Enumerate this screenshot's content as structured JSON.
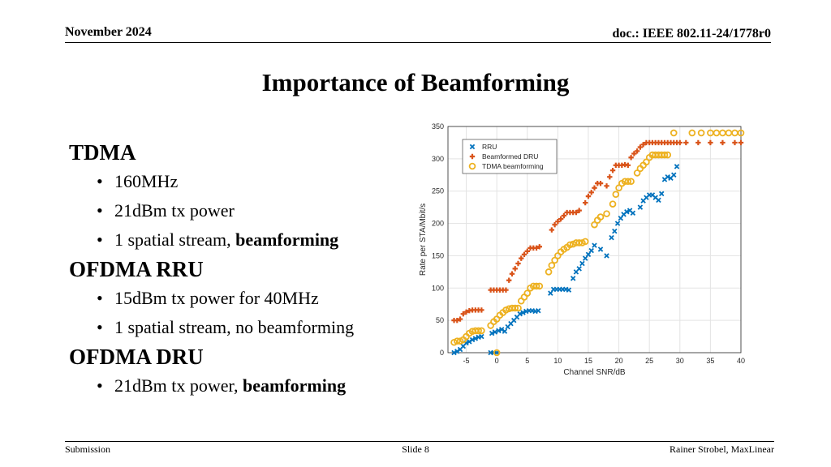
{
  "header": {
    "date": "November 2024",
    "doc": "doc.: IEEE 802.11-24/1778r0"
  },
  "title": "Importance of Beamforming",
  "bullets": [
    {
      "heading": "TDMA",
      "items": [
        {
          "text": "160MHz"
        },
        {
          "text": "21dBm tx power"
        },
        {
          "text": "1 spatial stream, ",
          "bold": "beamforming"
        }
      ]
    },
    {
      "heading": "OFDMA RRU",
      "items": [
        {
          "text": "15dBm tx power for 40MHz"
        },
        {
          "text": "1 spatial stream, no beamforming"
        }
      ]
    },
    {
      "heading": "OFDMA DRU",
      "items": [
        {
          "text": "21dBm tx power, ",
          "bold": "beamforming"
        }
      ]
    }
  ],
  "footer": {
    "left": "Submission",
    "center": "Slide 8",
    "right": "Rainer Strobel, MaxLinear"
  },
  "chart_data": {
    "type": "scatter",
    "xlabel": "Channel SNR/dB",
    "ylabel": "Rate per STA/Mbit/s",
    "xlim": [
      -8,
      40
    ],
    "ylim": [
      0,
      350
    ],
    "xticks": [
      -5,
      0,
      5,
      10,
      15,
      20,
      25,
      30,
      35,
      40
    ],
    "yticks": [
      0,
      50,
      100,
      150,
      200,
      250,
      300,
      350
    ],
    "grid": true,
    "legend_position": "top-left",
    "series": [
      {
        "name": "RRU",
        "color": "#0072BD",
        "marker": "x",
        "points": [
          [
            -7,
            0
          ],
          [
            -6.5,
            2
          ],
          [
            -6,
            5
          ],
          [
            -5.5,
            10
          ],
          [
            -5,
            15
          ],
          [
            -4.5,
            17
          ],
          [
            -4,
            20
          ],
          [
            -3.5,
            22
          ],
          [
            -3,
            24
          ],
          [
            -2.5,
            25
          ],
          [
            -1,
            0
          ],
          [
            -0.5,
            0
          ],
          [
            0,
            0
          ],
          [
            -0.8,
            30
          ],
          [
            -0.3,
            32
          ],
          [
            0.3,
            34
          ],
          [
            0.8,
            36
          ],
          [
            1.3,
            33
          ],
          [
            1.8,
            40
          ],
          [
            2.3,
            45
          ],
          [
            2.8,
            50
          ],
          [
            3.3,
            55
          ],
          [
            3.8,
            60
          ],
          [
            4.3,
            62
          ],
          [
            4.8,
            64
          ],
          [
            5.3,
            65
          ],
          [
            5.8,
            65
          ],
          [
            6.3,
            64
          ],
          [
            6.8,
            65
          ],
          [
            8.8,
            92
          ],
          [
            9.3,
            98
          ],
          [
            9.8,
            98
          ],
          [
            10.3,
            98
          ],
          [
            10.8,
            98
          ],
          [
            11.3,
            98
          ],
          [
            11.8,
            97
          ],
          [
            12.5,
            115
          ],
          [
            13,
            125
          ],
          [
            13.5,
            130
          ],
          [
            14,
            138
          ],
          [
            14.5,
            146
          ],
          [
            15,
            152
          ],
          [
            15.5,
            158
          ],
          [
            16,
            166
          ],
          [
            17,
            160
          ],
          [
            18,
            150
          ],
          [
            18.8,
            178
          ],
          [
            19.3,
            188
          ],
          [
            19.8,
            200
          ],
          [
            20.3,
            208
          ],
          [
            20.8,
            214
          ],
          [
            21.3,
            218
          ],
          [
            21.8,
            220
          ],
          [
            22.3,
            216
          ],
          [
            23.5,
            225
          ],
          [
            24,
            235
          ],
          [
            24.5,
            240
          ],
          [
            25,
            244
          ],
          [
            25.5,
            244
          ],
          [
            26,
            240
          ],
          [
            26.5,
            236
          ],
          [
            27,
            246
          ],
          [
            27.5,
            268
          ],
          [
            28,
            272
          ],
          [
            28.5,
            270
          ],
          [
            29,
            275
          ],
          [
            29.5,
            288
          ]
        ]
      },
      {
        "name": "Beamformed DRU",
        "color": "#D95319",
        "marker": "plus",
        "points": [
          [
            -7,
            50
          ],
          [
            -6.5,
            50
          ],
          [
            -6,
            52
          ],
          [
            -5.5,
            60
          ],
          [
            -5,
            63
          ],
          [
            -4.5,
            65
          ],
          [
            -4,
            66
          ],
          [
            -3.5,
            66
          ],
          [
            -3,
            66
          ],
          [
            -2.5,
            66
          ],
          [
            -1,
            97
          ],
          [
            -0.5,
            97
          ],
          [
            0,
            97
          ],
          [
            0.5,
            97
          ],
          [
            1,
            97
          ],
          [
            1.5,
            97
          ],
          [
            2,
            112
          ],
          [
            2.5,
            122
          ],
          [
            3,
            130
          ],
          [
            3.5,
            138
          ],
          [
            4,
            146
          ],
          [
            4.5,
            152
          ],
          [
            5,
            157
          ],
          [
            5.5,
            162
          ],
          [
            6,
            162
          ],
          [
            6.5,
            162
          ],
          [
            7,
            164
          ],
          [
            9,
            190
          ],
          [
            9.5,
            198
          ],
          [
            10,
            203
          ],
          [
            10.5,
            207
          ],
          [
            11,
            212
          ],
          [
            11.5,
            217
          ],
          [
            12,
            217
          ],
          [
            12.5,
            217
          ],
          [
            13,
            217
          ],
          [
            13.5,
            220
          ],
          [
            14.5,
            232
          ],
          [
            15,
            242
          ],
          [
            15.5,
            248
          ],
          [
            16,
            255
          ],
          [
            16.5,
            262
          ],
          [
            17,
            262
          ],
          [
            18,
            258
          ],
          [
            18.5,
            272
          ],
          [
            19,
            282
          ],
          [
            19.5,
            290
          ],
          [
            20,
            290
          ],
          [
            20.5,
            290
          ],
          [
            21,
            291
          ],
          [
            21.5,
            290
          ],
          [
            22,
            302
          ],
          [
            22.5,
            308
          ],
          [
            23,
            312
          ],
          [
            23.5,
            318
          ],
          [
            24,
            322
          ],
          [
            24.5,
            325
          ],
          [
            25,
            325
          ],
          [
            25.5,
            325
          ],
          [
            26,
            325
          ],
          [
            26.5,
            325
          ],
          [
            27,
            325
          ],
          [
            27.5,
            325
          ],
          [
            28,
            325
          ],
          [
            28.5,
            325
          ],
          [
            29,
            325
          ],
          [
            29.5,
            325
          ],
          [
            30,
            325
          ],
          [
            31,
            325
          ],
          [
            33,
            325
          ],
          [
            35,
            325
          ],
          [
            37,
            325
          ],
          [
            39,
            325
          ],
          [
            40,
            325
          ]
        ]
      },
      {
        "name": "TDMA beamforming",
        "color": "#EDB120",
        "marker": "circle",
        "points": [
          [
            -7,
            16
          ],
          [
            -6.5,
            18
          ],
          [
            -6,
            18
          ],
          [
            -5.5,
            20
          ],
          [
            -5,
            25
          ],
          [
            -4.5,
            30
          ],
          [
            -4,
            33
          ],
          [
            -3.5,
            34
          ],
          [
            -3,
            34
          ],
          [
            -2.5,
            34
          ],
          [
            0,
            0
          ],
          [
            -1,
            42
          ],
          [
            -0.5,
            48
          ],
          [
            0,
            52
          ],
          [
            0.5,
            58
          ],
          [
            1,
            62
          ],
          [
            1.5,
            66
          ],
          [
            2,
            68
          ],
          [
            2.5,
            69
          ],
          [
            3,
            69
          ],
          [
            3.5,
            69
          ],
          [
            4,
            80
          ],
          [
            4.5,
            86
          ],
          [
            5,
            92
          ],
          [
            5.5,
            100
          ],
          [
            6,
            103
          ],
          [
            6.5,
            103
          ],
          [
            7,
            103
          ],
          [
            8.5,
            125
          ],
          [
            9,
            135
          ],
          [
            9.5,
            143
          ],
          [
            10,
            150
          ],
          [
            10.5,
            156
          ],
          [
            11,
            160
          ],
          [
            11.5,
            163
          ],
          [
            12,
            167
          ],
          [
            12.5,
            168
          ],
          [
            13,
            170
          ],
          [
            13.5,
            170
          ],
          [
            14,
            170
          ],
          [
            14.5,
            172
          ],
          [
            16,
            198
          ],
          [
            16.5,
            205
          ],
          [
            17,
            210
          ],
          [
            18,
            215
          ],
          [
            19,
            230
          ],
          [
            19.5,
            245
          ],
          [
            20,
            255
          ],
          [
            20.5,
            262
          ],
          [
            21,
            265
          ],
          [
            21.5,
            265
          ],
          [
            22,
            265
          ],
          [
            23,
            278
          ],
          [
            23.5,
            285
          ],
          [
            24,
            290
          ],
          [
            24.5,
            295
          ],
          [
            25,
            302
          ],
          [
            25.5,
            306
          ],
          [
            26,
            306
          ],
          [
            26.5,
            306
          ],
          [
            27,
            306
          ],
          [
            27.5,
            306
          ],
          [
            28,
            306
          ],
          [
            29,
            340
          ],
          [
            32,
            340
          ],
          [
            33.5,
            340
          ],
          [
            35,
            340
          ],
          [
            36,
            340
          ],
          [
            37,
            340
          ],
          [
            38,
            340
          ],
          [
            39,
            340
          ],
          [
            40,
            340
          ]
        ]
      }
    ]
  }
}
